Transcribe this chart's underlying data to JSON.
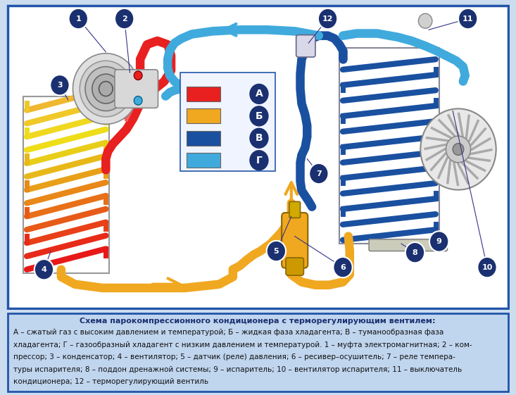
{
  "title": "Схема парокомпрессионного кондиционера с терморегулирующим вентилем:",
  "caption_line1": "А – сжатый газ с высоким давлением и температурой; Б – жидкая фаза хладагента; В – туманообразная фаза",
  "caption_line2": "хладагента; Г – газообразный хладагент с низким давлением и температурой. 1 – муфта электромагнитная; 2 – ком-",
  "caption_line3": "прессор; 3 – конденсатор; 4 – вентилятор; 5 – датчик (реле) давления; 6 – ресивер–осушитель; 7 – реле темпера-",
  "caption_line4": "туры испарителя; 8 – поддон дренажной системы; 9 – испаритель; 10 – вентилятор испарителя; 11 – выключатель",
  "caption_line5": "кондиционера; 12 – терморегулирующий вентиль",
  "bg_color": "#ccddf0",
  "border_color": "#2255aa",
  "legend_items": [
    {
      "label": "А",
      "color": "#e82020"
    },
    {
      "label": "Б",
      "color": "#f0a820"
    },
    {
      "label": "В",
      "color": "#1a50a0"
    },
    {
      "label": "Г",
      "color": "#40aadd"
    }
  ],
  "number_bg": "#1a3070",
  "number_fg": "#ffffff",
  "diagram_bg": "#ffffff",
  "caption_bg": "#c0d5ee",
  "caption_title_color": "#1a3070",
  "caption_text_color": "#111111"
}
